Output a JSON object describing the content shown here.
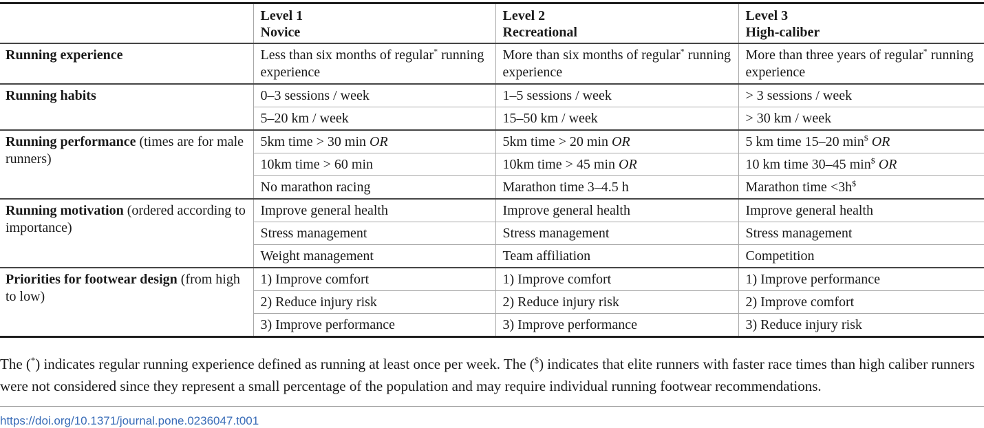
{
  "table": {
    "header": {
      "empty": "",
      "columns": [
        {
          "line1": "Level 1",
          "line2": "Novice"
        },
        {
          "line1": "Level 2",
          "line2": "Recreational"
        },
        {
          "line1": "Level 3",
          "line2": "High-caliber"
        }
      ]
    },
    "groups": [
      {
        "label": "Running experience",
        "note": "",
        "rows": [
          [
            [
              {
                "text": "Less than six months of regular"
              },
              {
                "text": "*",
                "sup": true
              },
              {
                "text": " running experience"
              }
            ],
            [
              {
                "text": "More than six months of regular"
              },
              {
                "text": "*",
                "sup": true
              },
              {
                "text": " running experience"
              }
            ],
            [
              {
                "text": "More than three years of regular"
              },
              {
                "text": "*",
                "sup": true
              },
              {
                "text": " running experience"
              }
            ]
          ]
        ]
      },
      {
        "label": "Running habits",
        "note": "",
        "rows": [
          [
            [
              {
                "text": "0–3 sessions / week"
              }
            ],
            [
              {
                "text": "1–5 sessions / week"
              }
            ],
            [
              {
                "text": "> 3 sessions / week"
              }
            ]
          ],
          [
            [
              {
                "text": "5–20 km / week"
              }
            ],
            [
              {
                "text": "15–50 km / week"
              }
            ],
            [
              {
                "text": "> 30 km / week"
              }
            ]
          ]
        ]
      },
      {
        "label": "Running performance",
        "note": "(times are for male runners)",
        "rows": [
          [
            [
              {
                "text": "5km time > 30 min "
              },
              {
                "text": "OR",
                "italic": true
              }
            ],
            [
              {
                "text": "5km time > 20 min "
              },
              {
                "text": "OR",
                "italic": true
              }
            ],
            [
              {
                "text": "5 km time 15–20 min"
              },
              {
                "text": "$",
                "sup": true
              },
              {
                "text": " "
              },
              {
                "text": "OR",
                "italic": true
              }
            ]
          ],
          [
            [
              {
                "text": "10km time > 60 min"
              }
            ],
            [
              {
                "text": "10km time > 45 min "
              },
              {
                "text": "OR",
                "italic": true
              }
            ],
            [
              {
                "text": "10 km time 30–45 min"
              },
              {
                "text": "$",
                "sup": true
              },
              {
                "text": " "
              },
              {
                "text": "OR",
                "italic": true
              }
            ]
          ],
          [
            [
              {
                "text": "No marathon racing"
              }
            ],
            [
              {
                "text": "Marathon time 3–4.5 h"
              }
            ],
            [
              {
                "text": "Marathon time <3h"
              },
              {
                "text": "$",
                "sup": true
              }
            ]
          ]
        ]
      },
      {
        "label": "Running motivation",
        "note": "(ordered according to importance)",
        "rows": [
          [
            [
              {
                "text": "Improve general health"
              }
            ],
            [
              {
                "text": "Improve general health"
              }
            ],
            [
              {
                "text": "Improve general health"
              }
            ]
          ],
          [
            [
              {
                "text": "Stress management"
              }
            ],
            [
              {
                "text": "Stress management"
              }
            ],
            [
              {
                "text": "Stress management"
              }
            ]
          ],
          [
            [
              {
                "text": "Weight management"
              }
            ],
            [
              {
                "text": "Team affiliation"
              }
            ],
            [
              {
                "text": "Competition"
              }
            ]
          ]
        ]
      },
      {
        "label": "Priorities for footwear design",
        "note": "(from high to low)",
        "rows": [
          [
            [
              {
                "text": "1) Improve comfort"
              }
            ],
            [
              {
                "text": "1) Improve comfort"
              }
            ],
            [
              {
                "text": "1) Improve performance"
              }
            ]
          ],
          [
            [
              {
                "text": "2) Reduce injury risk"
              }
            ],
            [
              {
                "text": "2) Reduce injury risk"
              }
            ],
            [
              {
                "text": "2) Improve comfort"
              }
            ]
          ],
          [
            [
              {
                "text": "3) Improve performance"
              }
            ],
            [
              {
                "text": "3) Improve performance"
              }
            ],
            [
              {
                "text": "3) Reduce injury risk"
              }
            ]
          ]
        ]
      }
    ]
  },
  "footnote": {
    "segments": [
      {
        "text": "The ("
      },
      {
        "text": "*",
        "sup": true
      },
      {
        "text": ") indicates regular running experience defined as running at least once per week. The ("
      },
      {
        "text": "$",
        "sup": true
      },
      {
        "text": ") indicates that elite runners with faster race times than high caliber runners were not considered since they represent a small percentage of the population and may require individual running footwear recommendations."
      }
    ]
  },
  "doi_link": "https://doi.org/10.1371/journal.pone.0236047.t001",
  "colors": {
    "text": "#1a1a1a",
    "link": "#3a6db8",
    "border_strong": "#1f1f1f",
    "border_group": "#454545",
    "border_light": "#a8a8a8"
  }
}
